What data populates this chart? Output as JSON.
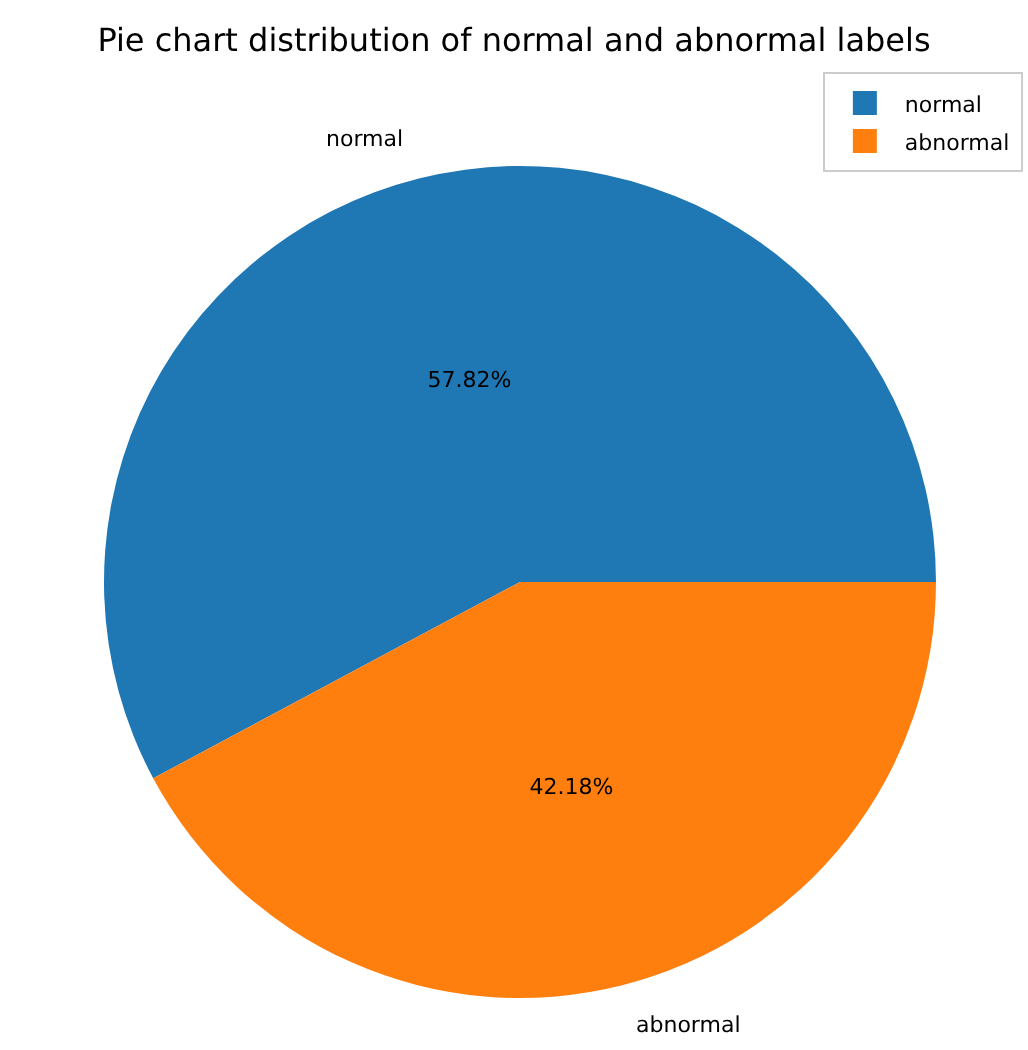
{
  "chart_data": {
    "type": "pie",
    "title": "Pie chart distribution of normal and abnormal labels",
    "categories": [
      "normal",
      "abnormal"
    ],
    "values": [
      57.82,
      42.18
    ],
    "colors": [
      "#1f77b4",
      "#ff7f0e"
    ],
    "value_labels": [
      "57.82%",
      "42.18%"
    ],
    "legend": "top right"
  }
}
